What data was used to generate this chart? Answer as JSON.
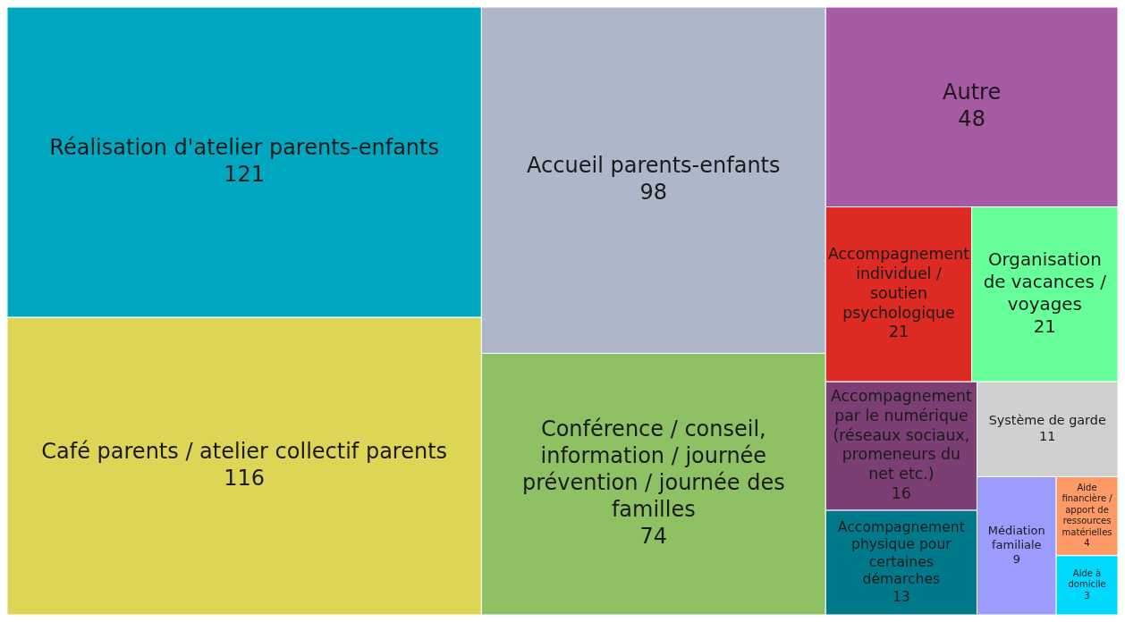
{
  "chart_data": {
    "type": "other",
    "categories": [
      "Réalisation d'atelier parents-enfants",
      "Café parents / atelier collectif parents",
      "Accueil parents-enfants",
      "Conférence / conseil, information / journée prévention / journée des familles",
      "Autre",
      "Accompagnement individuel / soutien psychologique",
      "Organisation de vacances / voyages",
      "Accompagnement par le numérique (réseaux sociaux, promeneurs du net etc.)",
      "Accompagnement physique pour certaines démarches",
      "Système de garde",
      "Médiation familiale",
      "Aide financière / apport de ressources matérielles",
      "Aide à domicile"
    ],
    "values": [
      121,
      116,
      98,
      74,
      48,
      21,
      21,
      16,
      13,
      11,
      9,
      4,
      3
    ],
    "colors": [
      "#00a7c1",
      "#ddd555",
      "#adb7c9",
      "#8ec064",
      "#a65aa3",
      "#dd2a22",
      "#66ff99",
      "#7b3f74",
      "#007a8a",
      "#d0d0d0",
      "#9c9cff",
      "#ff9966",
      "#00d9ff"
    ],
    "data_labels": true
  }
}
